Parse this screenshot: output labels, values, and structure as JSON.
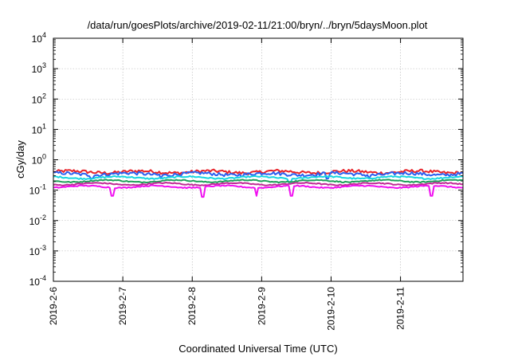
{
  "chart_data": {
    "type": "line",
    "title": "/data/run/goesPlots/archive/2019-02-11/21:00/bryn/../bryn/5daysMoon.plot",
    "xlabel": "Coordinated Universal Time (UTC)",
    "ylabel": "cGy/day",
    "y_scale": "log",
    "ylim": [
      0.0001,
      10000
    ],
    "y_ticks": [
      {
        "value": 10000,
        "base": "10",
        "exp": "4"
      },
      {
        "value": 1000,
        "base": "10",
        "exp": "3"
      },
      {
        "value": 100,
        "base": "10",
        "exp": "2"
      },
      {
        "value": 10,
        "base": "10",
        "exp": "1"
      },
      {
        "value": 1,
        "base": "10",
        "exp": "0"
      },
      {
        "value": 0.1,
        "base": "10",
        "exp": "-1"
      },
      {
        "value": 0.01,
        "base": "10",
        "exp": "-2"
      },
      {
        "value": 0.001,
        "base": "10",
        "exp": "-3"
      },
      {
        "value": 0.0001,
        "base": "10",
        "exp": "-4"
      }
    ],
    "x_range_days": [
      0,
      5.9
    ],
    "x_ticks": [
      {
        "label": "2019-2-6",
        "day": 0
      },
      {
        "label": "2019-2-7",
        "day": 1
      },
      {
        "label": "2019-2-8",
        "day": 2
      },
      {
        "label": "2019-2-9",
        "day": 3
      },
      {
        "label": "2019-2-10",
        "day": 4
      },
      {
        "label": "2019-2-11",
        "day": 5
      }
    ],
    "grid": true,
    "legend": "none",
    "series": [
      {
        "color": "#e8232a",
        "base": 0.4,
        "noise": 0.12,
        "dips": []
      },
      {
        "color": "#2b5ff0",
        "base": 0.34,
        "noise": 0.12,
        "dips": [
          [
            0.55,
            0.24
          ],
          [
            1.55,
            0.24
          ],
          [
            3.95,
            0.24
          ],
          [
            4.55,
            0.24
          ]
        ]
      },
      {
        "color": "#18d6e0",
        "base": 0.26,
        "noise": 0.05,
        "dips": [
          [
            3.4,
            0.18
          ]
        ]
      },
      {
        "color": "#1fa05a",
        "base": 0.2,
        "noise": 0.04,
        "dips": []
      },
      {
        "color": "#c02a95",
        "base": 0.16,
        "noise": 0.04,
        "dips": []
      },
      {
        "color": "#f00ff0",
        "base": 0.13,
        "noise": 0.04,
        "dips": [
          [
            0.85,
            0.065
          ],
          [
            2.15,
            0.06
          ],
          [
            2.93,
            0.065
          ],
          [
            3.43,
            0.065
          ],
          [
            5.45,
            0.065
          ]
        ]
      }
    ]
  }
}
